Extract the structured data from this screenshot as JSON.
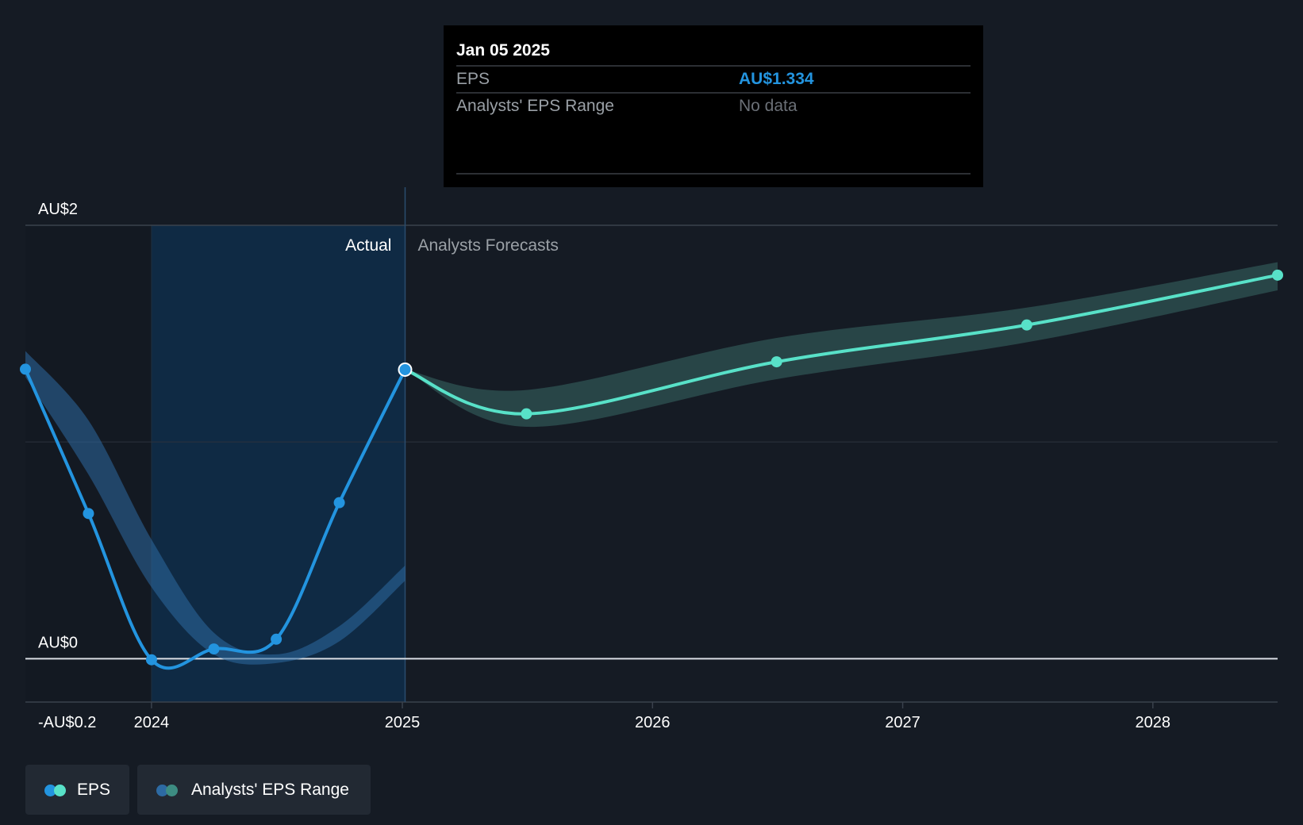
{
  "chart_data": {
    "type": "line",
    "currency_prefix": "AU$",
    "x_domain": [
      "2023-07-01",
      "2028-07-01"
    ],
    "ylim": [
      -0.2,
      2.0
    ],
    "y_ticks": [
      {
        "value": 2,
        "label": "AU$2"
      },
      {
        "value": 0,
        "label": "AU$0"
      },
      {
        "value": -0.2,
        "label": "-AU$0.2"
      }
    ],
    "x_ticks": [
      {
        "date": "2024-01-01",
        "label": "2024"
      },
      {
        "date": "2025-01-01",
        "label": "2025"
      },
      {
        "date": "2026-01-01",
        "label": "2026"
      },
      {
        "date": "2027-01-01",
        "label": "2027"
      },
      {
        "date": "2028-01-01",
        "label": "2028"
      }
    ],
    "divider_date": "2025-01-05",
    "region_labels": {
      "actual": "Actual",
      "forecast": "Analysts Forecasts"
    },
    "actual_eps": [
      {
        "date": "2023-07-01",
        "value": 1.336
      },
      {
        "date": "2023-10-01",
        "value": 0.67
      },
      {
        "date": "2024-01-01",
        "value": -0.005
      },
      {
        "date": "2024-04-01",
        "value": 0.045
      },
      {
        "date": "2024-07-01",
        "value": 0.09
      },
      {
        "date": "2024-10-01",
        "value": 0.72
      },
      {
        "date": "2025-01-05",
        "value": 1.334
      }
    ],
    "forecast_eps": [
      {
        "date": "2025-01-05",
        "value": 1.334
      },
      {
        "date": "2025-07-01",
        "value": 1.13
      },
      {
        "date": "2026-07-01",
        "value": 1.37
      },
      {
        "date": "2027-07-01",
        "value": 1.54
      },
      {
        "date": "2028-07-01",
        "value": 1.77
      }
    ],
    "forecast_range": {
      "high": [
        {
          "date": "2025-01-05",
          "value": 1.334
        },
        {
          "date": "2025-07-01",
          "value": 1.24
        },
        {
          "date": "2026-07-01",
          "value": 1.48
        },
        {
          "date": "2027-07-01",
          "value": 1.62
        },
        {
          "date": "2028-07-01",
          "value": 1.83
        }
      ],
      "low": [
        {
          "date": "2025-01-05",
          "value": 1.334
        },
        {
          "date": "2025-07-01",
          "value": 1.07
        },
        {
          "date": "2026-07-01",
          "value": 1.29
        },
        {
          "date": "2027-07-01",
          "value": 1.46
        },
        {
          "date": "2028-07-01",
          "value": 1.7
        }
      ]
    },
    "historical_range": {
      "high": [
        {
          "date": "2023-07-01",
          "value": 1.42
        },
        {
          "date": "2023-10-01",
          "value": 1.1
        },
        {
          "date": "2024-01-01",
          "value": 0.55
        },
        {
          "date": "2024-04-01",
          "value": 0.12
        },
        {
          "date": "2024-07-01",
          "value": 0.02
        },
        {
          "date": "2024-10-01",
          "value": 0.15
        },
        {
          "date": "2025-01-05",
          "value": 0.43
        }
      ],
      "low": [
        {
          "date": "2023-07-01",
          "value": 1.3
        },
        {
          "date": "2023-10-01",
          "value": 0.85
        },
        {
          "date": "2024-01-01",
          "value": 0.33
        },
        {
          "date": "2024-04-01",
          "value": 0.02
        },
        {
          "date": "2024-07-01",
          "value": -0.02
        },
        {
          "date": "2024-10-01",
          "value": 0.08
        },
        {
          "date": "2025-01-05",
          "value": 0.36
        }
      ]
    },
    "colors": {
      "background": "#151b24",
      "actual_line": "#2394df",
      "forecast_line": "#58e1c8",
      "forecast_band": "#2a4a4b",
      "actual_shade": "#0f2a44",
      "historical_band": "#2d6aa3",
      "gridline": "#2c333d",
      "zero_line": "#d9dde3",
      "tick_text": "#ffffff",
      "muted_text": "#9aa0a6"
    }
  },
  "tooltip": {
    "date": "Jan 05 2025",
    "rows": [
      {
        "label": "EPS",
        "value": "AU$1.334"
      },
      {
        "label": "Analysts' EPS Range",
        "value": "No data"
      }
    ]
  },
  "legend": {
    "eps_label": "EPS",
    "range_label": "Analysts' EPS Range"
  }
}
